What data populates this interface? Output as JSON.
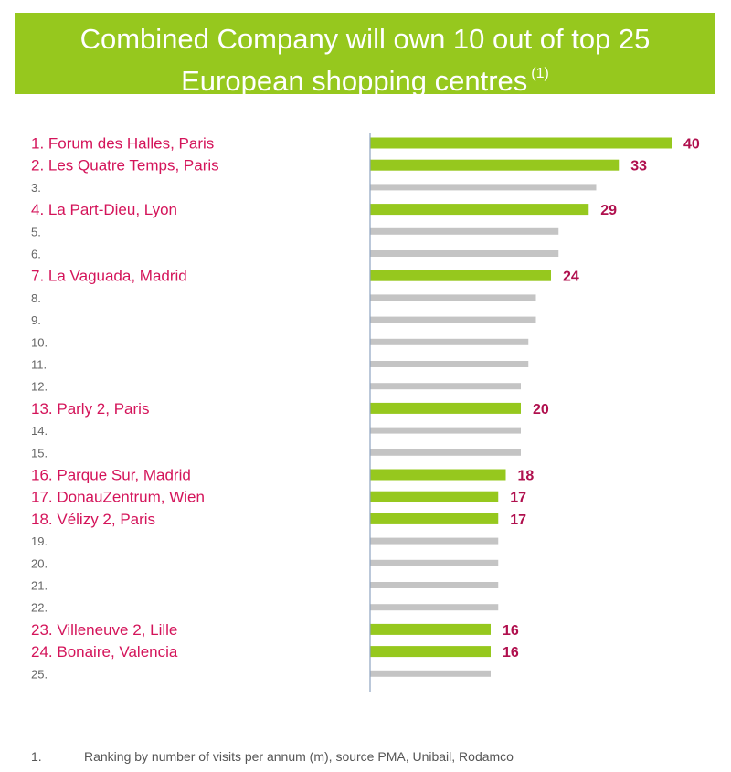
{
  "header": {
    "title_line1": "Combined Company will own 10 out of top 25",
    "title_line2": "European shopping centres",
    "title_footnote_ref": "(1)"
  },
  "colors": {
    "accent_green": "#96c81e",
    "highlight_label": "#d4145a",
    "value_label": "#b0104e",
    "grey_bar": "#c4c4c4",
    "grey_label": "#666666",
    "axis": "#8ea3c0"
  },
  "chart_data": {
    "type": "bar",
    "orientation": "horizontal",
    "title": "Combined Company will own 10 out of top 25 European shopping centres (1)",
    "xlim": [
      0,
      40
    ],
    "categories": [
      "1. Forum des Halles, Paris",
      "2. Les Quatre Temps, Paris",
      "3.",
      "4. La Part-Dieu, Lyon",
      "5.",
      "6.",
      "7. La Vaguada, Madrid",
      "8.",
      "9.",
      "10.",
      "11.",
      "12.",
      "13. Parly 2, Paris",
      "14.",
      "15.",
      "16. Parque Sur, Madrid",
      "17. DonauZentrum, Wien",
      "18. Vélizy 2, Paris",
      "19.",
      "20.",
      "21.",
      "22.",
      "23. Villeneuve 2, Lille",
      "24. Bonaire, Valencia",
      "25."
    ],
    "values": [
      40,
      33,
      30,
      29,
      25,
      25,
      24,
      22,
      22,
      21,
      21,
      20,
      20,
      20,
      20,
      18,
      17,
      17,
      17,
      17,
      17,
      17,
      16,
      16,
      16
    ],
    "highlighted": [
      true,
      true,
      false,
      true,
      false,
      false,
      true,
      false,
      false,
      false,
      false,
      false,
      true,
      false,
      false,
      true,
      true,
      true,
      false,
      false,
      false,
      false,
      true,
      true,
      false
    ],
    "data_labels": [
      "40",
      "33",
      "",
      "29",
      "",
      "",
      "24",
      "",
      "",
      "",
      "",
      "",
      "20",
      "",
      "",
      "18",
      "17",
      "17",
      "",
      "",
      "",
      "",
      "16",
      "16",
      ""
    ]
  },
  "footnote": {
    "number": "1.",
    "text": "Ranking by number of visits per annum (m), source PMA, Unibail, Rodamco"
  }
}
